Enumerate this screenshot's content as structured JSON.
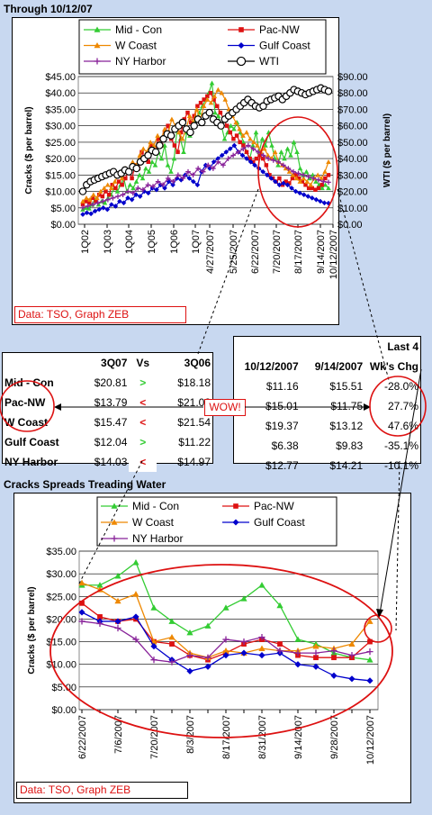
{
  "top_title": "Through 10/12/07",
  "middle_title": "Cracks Spreads Treading Water",
  "wow": "WOW!",
  "top_note": "Data: TSO, Graph ZEB",
  "bottom_note": "Data: TSO, Graph ZEB",
  "colors": {
    "midcon": "#33cc33",
    "pacnw": "#dd1111",
    "wcoast": "#ee8800",
    "gulf": "#0000cc",
    "nyh": "#882299",
    "wti": "#000000",
    "accent": "#dd1111"
  },
  "left_table": {
    "headers": [
      "",
      "3Q07",
      "Vs",
      "3Q06"
    ],
    "rows": [
      {
        "name": "Mid - Con",
        "q07": "$20.81",
        "vs": ">",
        "q06": "$18.18"
      },
      {
        "name": "Pac-NW",
        "q07": "$13.79",
        "vs": "<",
        "q06": "$21.02"
      },
      {
        "name": "W Coast",
        "q07": "$15.47",
        "vs": "<",
        "q06": "$21.54"
      },
      {
        "name": "Gulf Coast",
        "q07": "$12.04",
        "vs": ">",
        "q06": "$11.22"
      },
      {
        "name": "NY Harbor",
        "q07": "$14.03",
        "vs": "<",
        "q06": "$14.97"
      }
    ]
  },
  "right_table": {
    "top_header": "Last 4",
    "headers": [
      "10/12/2007",
      "9/14/2007",
      "Wk's Chg"
    ],
    "rows": [
      {
        "a": "$11.16",
        "b": "$15.51",
        "chg": "-28.0%"
      },
      {
        "a": "$15.01",
        "b": "$11.75",
        "chg": "27.7%"
      },
      {
        "a": "$19.37",
        "b": "$13.12",
        "chg": "47.6%"
      },
      {
        "a": "$6.38",
        "b": "$9.83",
        "chg": "-35.1%"
      },
      {
        "a": "$12.77",
        "b": "$14.21",
        "chg": "-10.1%"
      }
    ]
  },
  "chart_data": [
    {
      "type": "line",
      "ylabel": "Cracks ($ per barrel)",
      "y2label": "WTI ($ per barrel)",
      "ylim": [
        0,
        45
      ],
      "y2lim": [
        0,
        90
      ],
      "yticks": [
        "$0.00",
        "$5.00",
        "$10.00",
        "$15.00",
        "$20.00",
        "$25.00",
        "$30.00",
        "$35.00",
        "$40.00",
        "$45.00"
      ],
      "y2ticks": [
        "$0.00",
        "$10.00",
        "$20.00",
        "$30.00",
        "$40.00",
        "$50.00",
        "$60.00",
        "$70.00",
        "$80.00",
        "$90.00"
      ],
      "xticks": [
        "1Q02",
        "1Q03",
        "1Q04",
        "1Q05",
        "1Q06",
        "1Q07",
        "4/27/2007",
        "5/25/2007",
        "6/22/2007",
        "7/20/2007",
        "8/17/2007",
        "9/14/2007",
        "10/12/2007"
      ],
      "grid": true,
      "legend": "top",
      "series": [
        {
          "name": "Mid - Con",
          "values": [
            4.5,
            5,
            4.8,
            6,
            7.5,
            6,
            7,
            6.5,
            8,
            9,
            11,
            10,
            12,
            14,
            10,
            12,
            11,
            13,
            15,
            14,
            17,
            16,
            19,
            18,
            22,
            20,
            24,
            18,
            16,
            20,
            30,
            26,
            22,
            28,
            27,
            30,
            32,
            34,
            36,
            38,
            40,
            43,
            34,
            33,
            30,
            26,
            28,
            30,
            29,
            31,
            28,
            25,
            22,
            20,
            24,
            28,
            22,
            26,
            24,
            28,
            24,
            20,
            18,
            22,
            20,
            23,
            21,
            25,
            22,
            17,
            15,
            16,
            14,
            15,
            13,
            12,
            11,
            12,
            11
          ]
        },
        {
          "name": "Pac-NW",
          "values": [
            6,
            7,
            6.5,
            8,
            7,
            9,
            8.5,
            10,
            9,
            12,
            11,
            13,
            12,
            14,
            16,
            14,
            18,
            17,
            22,
            20,
            19,
            24,
            22,
            26,
            24,
            28,
            30,
            26,
            24,
            22,
            28,
            32,
            34,
            31,
            33,
            36,
            37,
            38,
            39,
            40,
            38,
            36,
            34,
            32,
            30,
            28,
            26,
            27,
            25,
            24,
            22,
            20,
            19,
            20,
            21,
            20,
            18,
            15,
            14,
            13,
            14,
            12,
            13,
            12.5,
            14,
            15,
            14,
            13,
            12,
            11,
            11,
            10.5,
            11,
            12,
            14,
            15
          ]
        },
        {
          "name": "W Coast",
          "values": [
            7,
            8,
            7.5,
            9,
            8,
            10,
            11,
            12,
            11,
            13,
            15,
            14,
            17,
            16,
            19,
            18,
            21,
            23,
            22,
            25,
            24,
            27,
            26,
            29,
            28,
            32,
            30,
            28,
            26,
            29,
            33,
            31,
            35,
            32,
            36,
            38,
            37,
            39,
            41,
            40,
            38,
            35,
            33,
            31,
            29,
            27,
            28,
            26,
            25,
            24,
            22,
            23,
            21,
            20,
            22,
            19,
            18,
            17,
            16,
            15,
            14,
            13,
            14,
            13,
            12,
            14,
            15,
            14,
            16,
            19
          ]
        },
        {
          "name": "Gulf Coast",
          "values": [
            3,
            3.5,
            3.2,
            4,
            4.5,
            5,
            4.5,
            6,
            5.5,
            7,
            6.5,
            8,
            7.5,
            9,
            8.5,
            10,
            9.5,
            11,
            10.5,
            12,
            11,
            13,
            12,
            14,
            13.5,
            15,
            14,
            13,
            12,
            16,
            18,
            17,
            19,
            20,
            21,
            22,
            23,
            24,
            22,
            21,
            20,
            19,
            18,
            17,
            16,
            15,
            14,
            13,
            12,
            12.5,
            12,
            11,
            10,
            9.5,
            9,
            8.5,
            8,
            7.5,
            7,
            6.5,
            6.4
          ]
        },
        {
          "name": "NY Harbor",
          "values": [
            5,
            5.5,
            6,
            6.5,
            7,
            7.5,
            8,
            8.5,
            9,
            10,
            9.5,
            11,
            10.5,
            12,
            11.5,
            13,
            12,
            14,
            13,
            15,
            14,
            16,
            15,
            17,
            16,
            18,
            17,
            19,
            18,
            20,
            21,
            22,
            23,
            24,
            23,
            22,
            21,
            20,
            19.5,
            19,
            18,
            17,
            16,
            15.5,
            15,
            14.5,
            14,
            13.5,
            13,
            12.8
          ]
        },
        {
          "name": "WTI",
          "axis": "y2",
          "values": [
            20,
            24,
            26,
            27,
            28,
            29,
            30,
            31,
            32,
            30,
            31,
            33,
            32,
            35,
            34,
            38,
            40,
            42,
            45,
            44,
            48,
            52,
            55,
            54,
            58,
            60,
            62,
            58,
            56,
            60,
            64,
            62,
            66,
            68,
            64,
            62,
            60,
            64,
            66,
            68,
            70,
            72,
            74,
            76,
            74,
            72,
            71,
            72,
            75,
            76,
            77,
            78,
            76,
            78,
            80,
            82,
            81,
            80,
            79,
            80,
            81,
            82,
            83,
            82,
            81
          ]
        }
      ]
    },
    {
      "type": "line",
      "ylabel": "Cracks ($ per barrel)",
      "ylim": [
        0,
        35
      ],
      "yticks": [
        "$0.00",
        "$5.00",
        "$10.00",
        "$15.00",
        "$20.00",
        "$25.00",
        "$30.00",
        "$35.00"
      ],
      "categories": [
        "6/22/2007",
        "6/29/2007",
        "7/6/2007",
        "7/13/2007",
        "7/20/2007",
        "7/27/2007",
        "8/3/2007",
        "8/10/2007",
        "8/17/2007",
        "8/24/2007",
        "8/31/2007",
        "9/7/2007",
        "9/14/2007",
        "9/21/2007",
        "9/28/2007",
        "10/5/2007",
        "10/12/2007"
      ],
      "xticks": [
        "6/22/2007",
        "7/6/2007",
        "7/20/2007",
        "8/3/2007",
        "8/17/2007",
        "8/31/2007",
        "9/14/2007",
        "9/28/2007",
        "10/12/2007"
      ],
      "grid": true,
      "legend": "top",
      "series": [
        {
          "name": "Mid - Con",
          "values": [
            27.5,
            27.5,
            29.5,
            32.5,
            22.5,
            19.5,
            17,
            18.5,
            22.5,
            24.5,
            27.5,
            23,
            15.5,
            14.5,
            12.5,
            11.5,
            11
          ]
        },
        {
          "name": "Pac-NW",
          "values": [
            23.5,
            20.5,
            19.5,
            20,
            15,
            14.5,
            12,
            11,
            12.5,
            14.5,
            15.5,
            14.5,
            12,
            11.5,
            11.5,
            11.5,
            15
          ]
        },
        {
          "name": "W Coast",
          "values": [
            28,
            26.5,
            24,
            25.5,
            15,
            16,
            12.5,
            11.5,
            13,
            12.5,
            13.5,
            13,
            13,
            14,
            13.5,
            14.5,
            19.5
          ]
        },
        {
          "name": "Gulf Coast",
          "values": [
            21.5,
            19.5,
            19.5,
            20.5,
            14,
            11,
            8.5,
            9.5,
            12,
            12.5,
            12,
            12.5,
            10,
            9.5,
            7.5,
            6.8,
            6.4
          ]
        },
        {
          "name": "NY Harbor",
          "values": [
            19.5,
            19,
            18,
            15.5,
            11,
            10.5,
            12,
            11.5,
            15.5,
            15,
            16,
            13,
            12.5,
            12.5,
            13,
            12,
            12.8
          ]
        }
      ]
    }
  ]
}
